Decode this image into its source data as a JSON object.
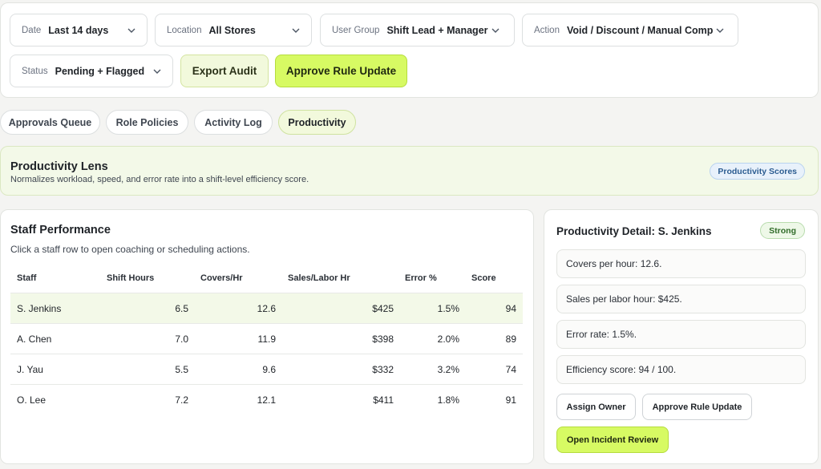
{
  "filters": [
    {
      "label": "Date",
      "value": "Last 14 days"
    },
    {
      "label": "Location",
      "value": "All Stores"
    },
    {
      "label": "User Group",
      "value": "Shift Lead + Manager"
    },
    {
      "label": "Action",
      "value": "Void / Discount / Manual Comp"
    },
    {
      "label": "Status",
      "value": "Pending + Flagged"
    }
  ],
  "toolbar": {
    "export_label": "Export Audit",
    "approve_label": "Approve Rule Update"
  },
  "tabs": [
    {
      "label": "Approvals Queue",
      "active": false
    },
    {
      "label": "Role Policies",
      "active": false
    },
    {
      "label": "Activity Log",
      "active": false
    },
    {
      "label": "Productivity",
      "active": true
    }
  ],
  "lens": {
    "title": "Productivity Lens",
    "subtitle": "Normalizes workload, speed, and error rate into a shift-level efficiency score.",
    "badge": "Productivity Scores"
  },
  "performance": {
    "title": "Staff Performance",
    "subtitle": "Click a staff row to open coaching or scheduling actions.",
    "columns": [
      "Staff",
      "Shift Hours",
      "Covers/Hr",
      "Sales/Labor Hr",
      "Error %",
      "Score"
    ],
    "rows": [
      {
        "staff": "S. Jenkins",
        "hours": "6.5",
        "covers": "12.6",
        "sales": "$425",
        "error": "1.5%",
        "score": "94",
        "selected": true
      },
      {
        "staff": "A. Chen",
        "hours": "7.0",
        "covers": "11.9",
        "sales": "$398",
        "error": "2.0%",
        "score": "89",
        "selected": false
      },
      {
        "staff": "J. Yau",
        "hours": "5.5",
        "covers": "9.6",
        "sales": "$332",
        "error": "3.2%",
        "score": "74",
        "selected": false
      },
      {
        "staff": "O. Lee",
        "hours": "7.2",
        "covers": "12.1",
        "sales": "$411",
        "error": "1.8%",
        "score": "91",
        "selected": false
      }
    ]
  },
  "detail": {
    "title": "Productivity Detail: S. Jenkins",
    "badge": "Strong",
    "metrics": [
      "Covers per hour: 12.6.",
      "Sales per labor hour: $425.",
      "Error rate: 1.5%.",
      "Efficiency score: 94 / 100."
    ],
    "assign_label": "Assign Owner",
    "approve_label": "Approve Rule Update",
    "incident_label": "Open Incident Review"
  },
  "colors": {
    "accent": "#d7fa63",
    "accent_soft": "#f2f9dc",
    "lens_bg": "#f3f9e8",
    "info_badge": "#2c5d91",
    "success_badge": "#2f6b28"
  }
}
